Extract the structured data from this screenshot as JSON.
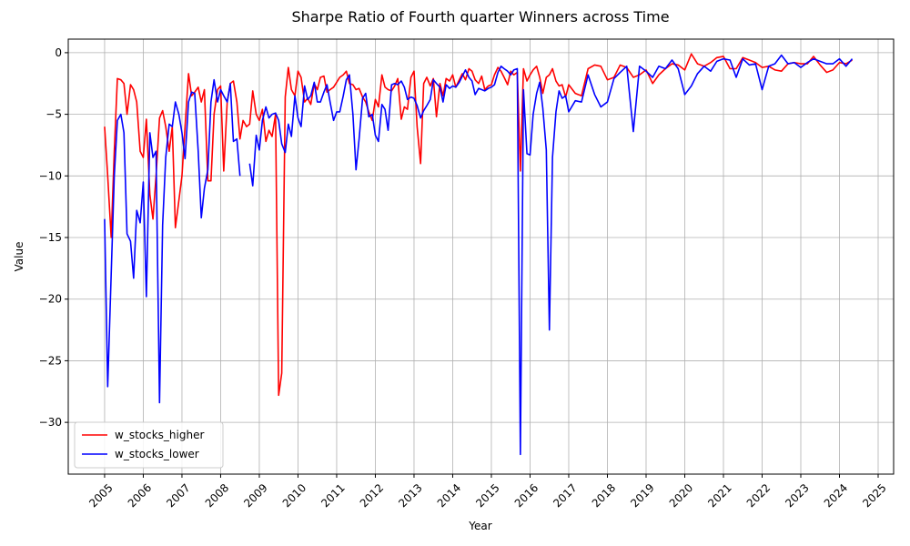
{
  "chart_data": {
    "type": "line",
    "title": "Sharpe Ratio of Fourth quarter Winners across Time",
    "x_label": "Year",
    "y_label": "Value",
    "xlim": [
      2004.06,
      2025.4
    ],
    "ylim": [
      -34.2,
      1.1
    ],
    "xticks": [
      2005,
      2006,
      2007,
      2008,
      2009,
      2010,
      2011,
      2012,
      2013,
      2014,
      2015,
      2016,
      2017,
      2018,
      2019,
      2020,
      2021,
      2022,
      2023,
      2024,
      2025
    ],
    "yticks": [
      {
        "value": -30,
        "label": "−30"
      },
      {
        "value": -25,
        "label": "−25"
      },
      {
        "value": -20,
        "label": "−20"
      },
      {
        "value": -15,
        "label": "−15"
      },
      {
        "value": -10,
        "label": "−10"
      },
      {
        "value": -5,
        "label": "−5"
      },
      0
    ],
    "grid": true,
    "legend": "lower left",
    "x": [
      2005.0,
      2005.08,
      2005.17,
      2005.25,
      2005.33,
      2005.42,
      2005.5,
      2005.58,
      2005.67,
      2005.75,
      2005.83,
      2005.92,
      2006.0,
      2006.08,
      2006.17,
      2006.25,
      2006.33,
      2006.42,
      2006.5,
      2006.58,
      2006.67,
      2006.75,
      2006.83,
      2006.92,
      2007.0,
      2007.08,
      2007.17,
      2007.25,
      2007.33,
      2007.42,
      2007.5,
      2007.58,
      2007.67,
      2007.75,
      2007.83,
      2007.92,
      2008.0,
      2008.08,
      2008.17,
      2008.25,
      2008.33,
      2008.42,
      2008.5,
      2008.58,
      2008.67,
      2008.75,
      2008.83,
      2008.92,
      2009.0,
      2009.08,
      2009.17,
      2009.25,
      2009.33,
      2009.42,
      2009.5,
      2009.58,
      2009.67,
      2009.75,
      2009.83,
      2009.92,
      2010.0,
      2010.08,
      2010.17,
      2010.25,
      2010.33,
      2010.42,
      2010.5,
      2010.58,
      2010.67,
      2010.75,
      2010.83,
      2010.92,
      2011.0,
      2011.08,
      2011.17,
      2011.25,
      2011.33,
      2011.42,
      2011.5,
      2011.58,
      2011.67,
      2011.75,
      2011.83,
      2011.92,
      2012.0,
      2012.08,
      2012.17,
      2012.25,
      2012.33,
      2012.42,
      2012.5,
      2012.58,
      2012.67,
      2012.75,
      2012.83,
      2012.92,
      2013.0,
      2013.08,
      2013.17,
      2013.25,
      2013.33,
      2013.42,
      2013.5,
      2013.58,
      2013.67,
      2013.75,
      2013.83,
      2013.92,
      2014.0,
      2014.08,
      2014.17,
      2014.25,
      2014.33,
      2014.42,
      2014.5,
      2014.58,
      2014.67,
      2014.75,
      2014.83,
      2014.92,
      2015.0,
      2015.08,
      2015.17,
      2015.25,
      2015.33,
      2015.42,
      2015.5,
      2015.58,
      2015.67,
      2015.75,
      2015.83,
      2015.92,
      2016.0,
      2016.08,
      2016.17,
      2016.25,
      2016.33,
      2016.42,
      2016.5,
      2016.58,
      2016.67,
      2016.75,
      2016.83,
      2016.92,
      2017.0,
      2017.17,
      2017.33,
      2017.5,
      2017.67,
      2017.83,
      2018.0,
      2018.17,
      2018.33,
      2018.5,
      2018.67,
      2018.83,
      2019.0,
      2019.17,
      2019.33,
      2019.5,
      2019.67,
      2019.83,
      2020.0,
      2020.17,
      2020.33,
      2020.5,
      2020.67,
      2020.83,
      2021.0,
      2021.17,
      2021.33,
      2021.5,
      2021.67,
      2021.83,
      2022.0,
      2022.17,
      2022.33,
      2022.5,
      2022.67,
      2022.83,
      2023.0,
      2023.17,
      2023.33,
      2023.5,
      2023.67,
      2023.83,
      2024.0,
      2024.17,
      2024.33
    ],
    "series": [
      {
        "name": "w_stocks_higher",
        "color": "#ff0000",
        "values": [
          -6,
          -10,
          -15,
          -8,
          -2.1,
          -2.2,
          -2.5,
          -5,
          -2.6,
          -3,
          -4,
          -8,
          -8.5,
          -5.4,
          -11.5,
          -13.5,
          -10,
          -5.3,
          -4.7,
          -6,
          -8,
          -6,
          -14.2,
          -12,
          -10,
          -6,
          -1.7,
          -3.5,
          -3.2,
          -2.8,
          -4,
          -3,
          -10.4,
          -10.4,
          -5,
          -3,
          -2.7,
          -9.6,
          -4,
          -2.5,
          -2.3,
          -4,
          -7,
          -5.5,
          -6,
          -5.8,
          -3.1,
          -5,
          -5.5,
          -4.6,
          -7.2,
          -6.3,
          -6.8,
          -5,
          -27.8,
          -26,
          -3.6,
          -1.2,
          -3,
          -3.5,
          -1.5,
          -2,
          -4,
          -3.7,
          -4.2,
          -2.5,
          -3,
          -2,
          -1.9,
          -3.2,
          -3,
          -2.8,
          -2.4,
          -2,
          -1.8,
          -1.5,
          -2.5,
          -2.6,
          -3,
          -2.9,
          -3.6,
          -4,
          -4.8,
          -5.5,
          -3.8,
          -4.4,
          -1.8,
          -2.8,
          -3,
          -3.1,
          -2.7,
          -2.1,
          -5.4,
          -4.4,
          -4.6,
          -2,
          -1.5,
          -6,
          -9,
          -2.5,
          -2,
          -2.7,
          -2.1,
          -5.2,
          -2.5,
          -3.5,
          -2.1,
          -2.3,
          -1.8,
          -2.8,
          -2.2,
          -1.7,
          -2.2,
          -1.3,
          -1.5,
          -2.2,
          -2.5,
          -1.9,
          -3,
          -2.7,
          -2.6,
          -1.8,
          -1.2,
          -1.5,
          -2,
          -2.6,
          -1.5,
          -1.8,
          -1.6,
          -9.6,
          -1.3,
          -2.3,
          -1.8,
          -1.4,
          -1.1,
          -2,
          -3.3,
          -2,
          -1.8,
          -1.3,
          -2.3,
          -2.7,
          -2.6,
          -3.6,
          -2.6,
          -3.3,
          -3.5,
          -1.3,
          -1,
          -1.1,
          -2.2,
          -2,
          -1,
          -1.2,
          -2,
          -1.8,
          -1.4,
          -2.5,
          -1.8,
          -1.3,
          -0.9,
          -1,
          -1.4,
          -0.1,
          -0.9,
          -1.1,
          -0.8,
          -0.4,
          -0.3,
          -1.3,
          -1.3,
          -0.4,
          -0.6,
          -0.8,
          -1.2,
          -1.1,
          -1.4,
          -1.5,
          -0.9,
          -0.8,
          -0.9,
          -0.9,
          -0.3,
          -1,
          -1.6,
          -1.4,
          -0.8,
          -0.9,
          -0.6
        ]
      },
      {
        "name": "w_stocks_lower",
        "color": "#0000ff",
        "values": [
          -13.5,
          -27.1,
          -18,
          -10,
          -5.5,
          -5,
          -6.5,
          -14.7,
          -15.3,
          -18.3,
          -12.8,
          -13.8,
          -10.5,
          -19.8,
          -6.5,
          -8.5,
          -8,
          -28.4,
          -14,
          -8.5,
          -5.8,
          -6,
          -4,
          -5,
          -6.5,
          -8.6,
          -4,
          -3.2,
          -3.3,
          -8,
          -13.4,
          -11,
          -9.5,
          -4,
          -2.2,
          -4,
          -3,
          -3.5,
          -4,
          -2.5,
          -7.2,
          -7,
          -10,
          null,
          null,
          -9,
          -10.8,
          -6.7,
          -7.9,
          -5.5,
          -4.4,
          -5.3,
          -5,
          -4.9,
          -5.5,
          -7.4,
          -8.1,
          -5.8,
          -6.8,
          -3.5,
          -5.3,
          -6,
          -2.7,
          -3.8,
          -3.5,
          -2.4,
          -4,
          -4,
          -3.2,
          -2.6,
          -4,
          -5.5,
          -4.8,
          -4.8,
          -3.5,
          -2.2,
          -1.8,
          -5,
          -9.5,
          -7,
          -3.7,
          -3.3,
          -5.2,
          -5,
          -6.7,
          -7.2,
          -4.2,
          -4.6,
          -6.3,
          -2.6,
          -2.5,
          -2.6,
          -2.3,
          -2.8,
          -3.8,
          -3.6,
          -3.7,
          -4.3,
          -5.3,
          -4.7,
          -4.3,
          -3.8,
          -2.2,
          -2.5,
          -2.8,
          -4,
          -2.6,
          -2.9,
          -2.7,
          -2.8,
          -2.4,
          -1.9,
          -1.4,
          -2,
          -2.3,
          -3.4,
          -2.9,
          -3,
          -3.1,
          -2.9,
          -2.8,
          -2.6,
          -1.6,
          -1.1,
          -1.3,
          -1.5,
          -1.8,
          -1.4,
          -1.3,
          -32.6,
          -3,
          -8.2,
          -8.3,
          -5,
          -3.3,
          -2.4,
          -4.5,
          -7.9,
          -22.5,
          -8.5,
          -4.8,
          -3.1,
          -3.7,
          -3.5,
          -4.8,
          -3.9,
          -4,
          -1.8,
          -3.4,
          -4.4,
          -4,
          -2.1,
          -1.6,
          -1.1,
          -6.4,
          -1.1,
          -1.5,
          -2,
          -1.1,
          -1.3,
          -0.6,
          -1.3,
          -3.4,
          -2.7,
          -1.7,
          -1.1,
          -1.5,
          -0.7,
          -0.5,
          -0.6,
          -2,
          -0.5,
          -1,
          -0.9,
          -3,
          -1.1,
          -0.9,
          -0.2,
          -0.9,
          -0.8,
          -1.2,
          -0.8,
          -0.5,
          -0.7,
          -0.9,
          -0.9,
          -0.5,
          -1.1,
          -0.5
        ]
      }
    ]
  }
}
